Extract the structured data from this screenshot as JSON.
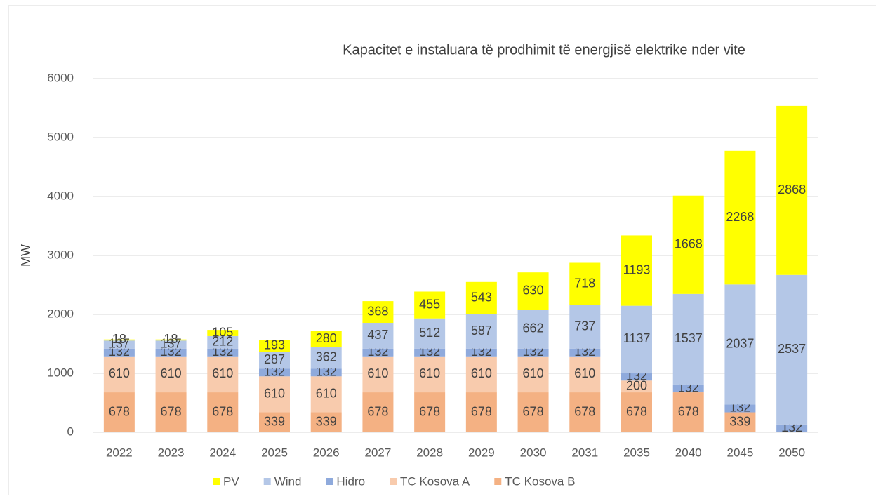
{
  "chart_data": {
    "type": "stacked_bar",
    "title": "Kapacitet e instaluara të prodhimit të energjisë elektrike nder vite",
    "y_label": "MW",
    "categories": [
      "2022",
      "2023",
      "2024",
      "2025",
      "2026",
      "2027",
      "2028",
      "2029",
      "2030",
      "2031",
      "2035",
      "2040",
      "2045",
      "2050"
    ],
    "series": [
      {
        "name": "TC Kosova B",
        "color": "#f4b183",
        "values": [
          678,
          678,
          678,
          339,
          339,
          678,
          678,
          678,
          678,
          678,
          678,
          678,
          339,
          0
        ]
      },
      {
        "name": "TC Kosova A",
        "color": "#f8cbad",
        "values": [
          610,
          610,
          610,
          610,
          610,
          610,
          610,
          610,
          610,
          610,
          200,
          0,
          0,
          0
        ]
      },
      {
        "name": "Hidro",
        "color": "#8faadc",
        "values": [
          132,
          132,
          132,
          132,
          132,
          132,
          132,
          132,
          132,
          132,
          132,
          132,
          132,
          132
        ]
      },
      {
        "name": "Wind",
        "color": "#b4c7e7",
        "values": [
          137,
          137,
          212,
          287,
          362,
          437,
          512,
          587,
          662,
          737,
          1137,
          1537,
          2037,
          2537
        ]
      },
      {
        "name": "PV",
        "color": "#ffff00",
        "values": [
          18,
          18,
          105,
          193,
          280,
          368,
          455,
          543,
          630,
          718,
          1193,
          1668,
          2268,
          2868
        ]
      }
    ],
    "ylim": [
      0,
      6000
    ],
    "yticks": [
      0,
      1000,
      2000,
      3000,
      4000,
      5000,
      6000
    ],
    "grid": true,
    "legend": "bottom"
  }
}
